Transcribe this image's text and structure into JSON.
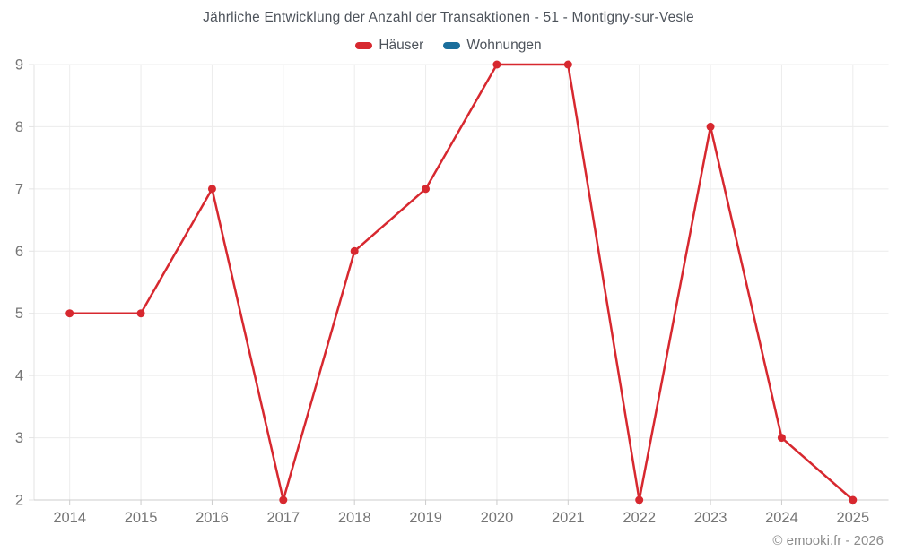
{
  "page": {
    "copyright": "© emooki.fr - 2026"
  },
  "legend": {
    "items": [
      {
        "id": "hauser",
        "label": "Häuser",
        "color": "#d7282f"
      },
      {
        "id": "wohnungen",
        "label": "Wohnungen",
        "color": "#1a6e9c"
      }
    ]
  },
  "colors": {
    "background": "#ffffff",
    "grid": "#ececec",
    "axis": "#cccccc",
    "plot_border": "#e3e3e3",
    "tick_label": "#757575",
    "title_text": "#4d535b",
    "copyright_text": "#8c8c8c",
    "hauser_red": "#d7282f",
    "wohnungen_blue": "#1a6e9c"
  },
  "chart_data": {
    "type": "line",
    "title": "Jährliche Entwicklung der Anzahl der Transaktionen - 51 - Montigny-sur-Vesle",
    "xlabel": "",
    "ylabel": "",
    "x": [
      "2014",
      "2015",
      "2016",
      "2017",
      "2018",
      "2019",
      "2020",
      "2021",
      "2022",
      "2023",
      "2024",
      "2025"
    ],
    "series": [
      {
        "name": "Häuser",
        "color": "#d7282f",
        "values": [
          5,
          5,
          7,
          2,
          6,
          7,
          9,
          9,
          2,
          8,
          3,
          2
        ]
      },
      {
        "name": "Wohnungen",
        "color": "#1a6e9c",
        "values": []
      }
    ],
    "ylim": [
      2,
      9
    ],
    "yticks": [
      2,
      3,
      4,
      5,
      6,
      7,
      8,
      9
    ],
    "grid": true,
    "legend_position": "top",
    "marker": "circle"
  }
}
